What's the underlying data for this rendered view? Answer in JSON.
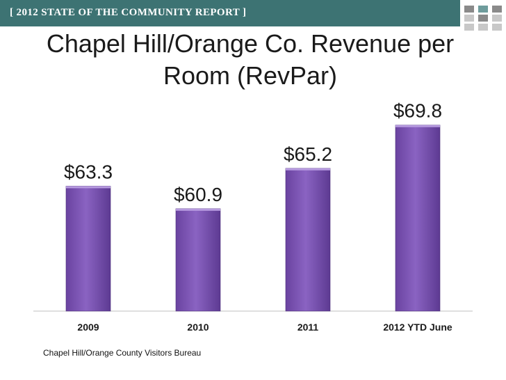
{
  "header": {
    "banner_text": "[ 2012 STATE OF THE COMMUNITY REPORT ]",
    "banner_color": "#3d7373"
  },
  "title_lines": [
    "Chapel Hill/Orange Co. Revenue per",
    "Room (RevPar)"
  ],
  "source": "Chapel Hill/Orange County Visitors Bureau",
  "chart_data": {
    "type": "bar",
    "title": "Chapel Hill/Orange Co. Revenue per Room (RevPar)",
    "categories": [
      "2009",
      "2010",
      "2011",
      "2012 YTD June"
    ],
    "values": [
      63.3,
      60.9,
      65.2,
      69.8
    ],
    "data_labels": [
      "$63.3",
      "$60.9",
      "$65.2",
      "$69.8"
    ],
    "ylim": [
      50,
      72
    ],
    "grid": false,
    "legend": "none",
    "bar_color": "#7d56b3"
  }
}
